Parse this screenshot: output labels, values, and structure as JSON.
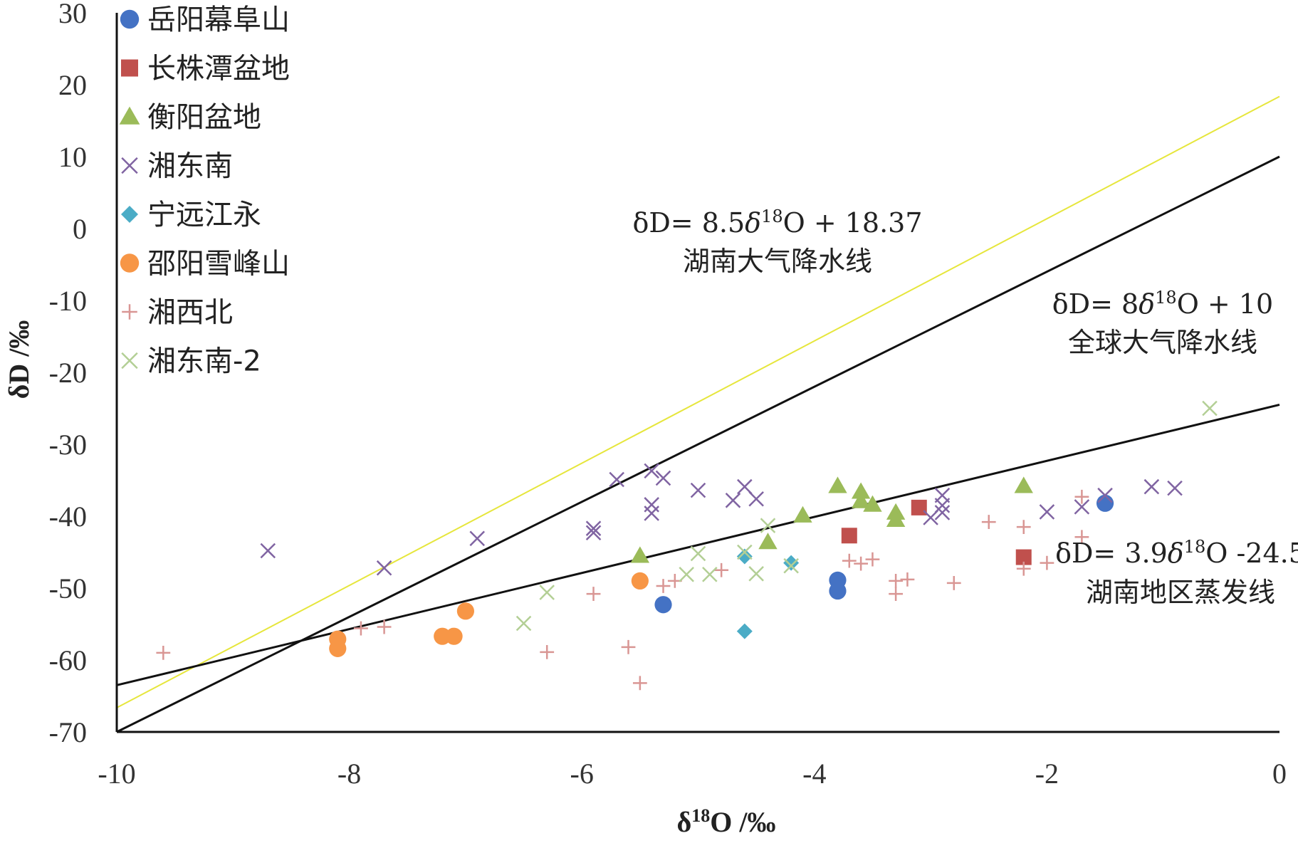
{
  "chart_data": {
    "type": "scatter",
    "title": "",
    "xlabel": "δ18O /‰",
    "ylabel": "δD /‰",
    "xlim": [
      -10,
      0
    ],
    "ylim": [
      -70,
      30
    ],
    "xticks": [
      -10,
      -8,
      -6,
      -4,
      -2,
      0
    ],
    "yticks": [
      30,
      20,
      10,
      0,
      -10,
      -20,
      -30,
      -40,
      -50,
      -60,
      -70
    ],
    "xtick_labels": [
      "-10",
      "-8",
      "-6",
      "-4",
      "-2",
      "0"
    ],
    "ytick_labels": [
      "30",
      "20",
      "10",
      "0",
      "-10",
      "-20",
      "-30",
      "-40",
      "-50",
      "-60",
      "-70"
    ],
    "grid": false,
    "legend_position": "top-left",
    "series": [
      {
        "name": "岳阳幕阜山",
        "marker": "circle",
        "color": "#4472C4",
        "points": [
          [
            -5.3,
            -52.3
          ],
          [
            -3.8,
            -48.9
          ],
          [
            -3.8,
            -50.4
          ],
          [
            -1.5,
            -38.2
          ]
        ]
      },
      {
        "name": "长株潭盆地",
        "marker": "square",
        "color": "#C0504D",
        "points": [
          [
            -3.1,
            -38.8
          ],
          [
            -3.7,
            -42.7
          ],
          [
            -2.2,
            -45.7
          ]
        ]
      },
      {
        "name": "衡阳盆地",
        "marker": "triangle",
        "color": "#9BBB59",
        "points": [
          [
            -5.5,
            -45.5
          ],
          [
            -4.4,
            -43.6
          ],
          [
            -4.1,
            -39.9
          ],
          [
            -3.8,
            -35.8
          ],
          [
            -3.6,
            -36.6
          ],
          [
            -3.6,
            -37.9
          ],
          [
            -3.5,
            -38.4
          ],
          [
            -3.3,
            -39.5
          ],
          [
            -3.3,
            -40.5
          ],
          [
            -2.2,
            -35.8
          ]
        ]
      },
      {
        "name": "湘东南",
        "marker": "x",
        "color": "#8064A2",
        "points": [
          [
            -8.7,
            -44.8
          ],
          [
            -7.7,
            -47.2
          ],
          [
            -6.9,
            -43.1
          ],
          [
            -5.9,
            -41.7
          ],
          [
            -5.9,
            -42.3
          ],
          [
            -5.7,
            -34.9
          ],
          [
            -5.4,
            -33.7
          ],
          [
            -5.3,
            -34.7
          ],
          [
            -5.4,
            -38.4
          ],
          [
            -5.4,
            -39.6
          ],
          [
            -5.0,
            -36.4
          ],
          [
            -4.7,
            -37.8
          ],
          [
            -4.6,
            -35.9
          ],
          [
            -4.5,
            -37.6
          ],
          [
            -3.0,
            -40.2
          ],
          [
            -2.9,
            -37.1
          ],
          [
            -2.9,
            -38.5
          ],
          [
            -2.9,
            -39.5
          ],
          [
            -2.0,
            -39.4
          ],
          [
            -1.7,
            -38.7
          ],
          [
            -1.5,
            -37.1
          ],
          [
            -1.1,
            -35.9
          ],
          [
            -0.9,
            -36.1
          ]
        ]
      },
      {
        "name": "宁远江永",
        "marker": "diamond",
        "color": "#4BACC6",
        "points": [
          [
            -4.6,
            -45.6
          ],
          [
            -4.2,
            -46.5
          ],
          [
            -4.6,
            -56.0
          ]
        ]
      },
      {
        "name": "邵阳雪峰山",
        "marker": "circle",
        "color": "#F79646",
        "points": [
          [
            -8.1,
            -57.1
          ],
          [
            -8.1,
            -58.4
          ],
          [
            -7.2,
            -56.7
          ],
          [
            -7.1,
            -56.7
          ],
          [
            -7.0,
            -53.2
          ],
          [
            -5.5,
            -49.0
          ]
        ]
      },
      {
        "name": "湘西北",
        "marker": "plus",
        "color": "#D99694",
        "points": [
          [
            -9.6,
            -59.0
          ],
          [
            -7.9,
            -55.6
          ],
          [
            -7.7,
            -55.4
          ],
          [
            -6.3,
            -58.9
          ],
          [
            -5.9,
            -50.8
          ],
          [
            -5.6,
            -58.2
          ],
          [
            -5.5,
            -63.2
          ],
          [
            -5.3,
            -49.7
          ],
          [
            -5.2,
            -49.0
          ],
          [
            -4.8,
            -47.5
          ],
          [
            -3.7,
            -46.2
          ],
          [
            -3.6,
            -46.6
          ],
          [
            -3.5,
            -46.0
          ],
          [
            -3.3,
            -49.0
          ],
          [
            -3.3,
            -50.8
          ],
          [
            -3.2,
            -48.8
          ],
          [
            -2.8,
            -49.3
          ],
          [
            -2.5,
            -40.8
          ],
          [
            -2.2,
            -41.5
          ],
          [
            -2.2,
            -47.3
          ],
          [
            -2.0,
            -46.5
          ],
          [
            -1.7,
            -37.3
          ],
          [
            -1.7,
            -42.9
          ]
        ]
      },
      {
        "name": "湘东南-2",
        "marker": "x",
        "color": "#B3CF95",
        "points": [
          [
            -6.5,
            -54.9
          ],
          [
            -6.3,
            -50.6
          ],
          [
            -5.1,
            -48.1
          ],
          [
            -5.0,
            -45.2
          ],
          [
            -4.9,
            -48.1
          ],
          [
            -4.6,
            -45.0
          ],
          [
            -4.5,
            -48.0
          ],
          [
            -4.4,
            -41.3
          ],
          [
            -4.2,
            -46.9
          ],
          [
            -0.6,
            -25.0
          ]
        ]
      }
    ],
    "lines": [
      {
        "slope": 8.5,
        "intercept": 18.37,
        "color": "#E6E63C",
        "label": "δD= 8.5δ18O + 18.37",
        "sublabel": "湖南大气降水线"
      },
      {
        "slope": 8,
        "intercept": 10,
        "color": "#111111",
        "label": "δD= 8δ18O + 10",
        "sublabel": "全球大气降水线"
      },
      {
        "slope": 3.9,
        "intercept": -24.5,
        "color": "#111111",
        "label": "δD= 3.9δ18O -24.5",
        "sublabel": "湖南地区蒸发线"
      }
    ]
  }
}
